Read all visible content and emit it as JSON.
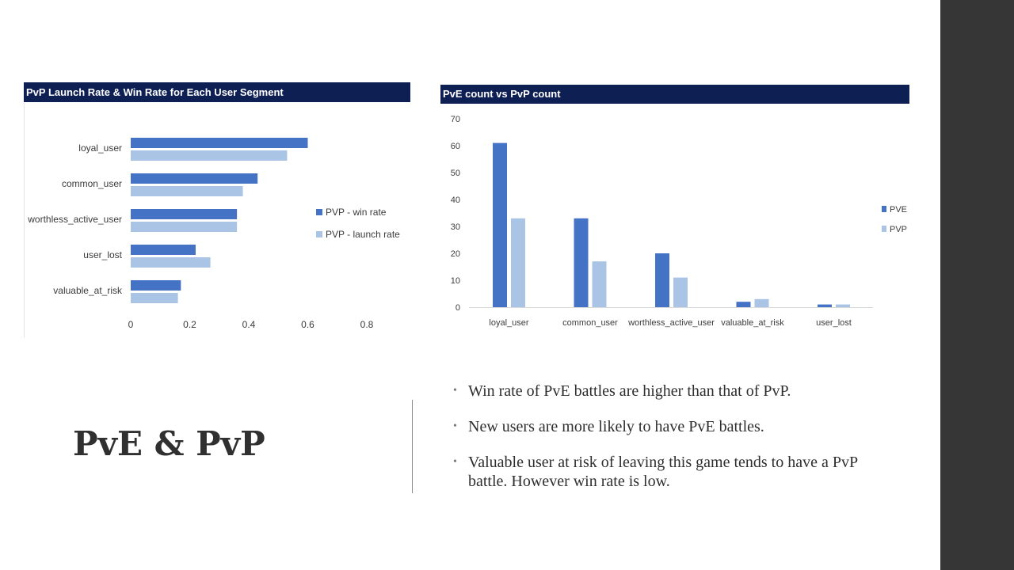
{
  "slide": {
    "title": "PvE & PvP",
    "bullets": [
      "Win rate of PvE battles are higher than that of PvP.",
      "New users are more likely to have PvE battles.",
      "Valuable user at risk of leaving this game tends to have a PvP battle. However win rate is low."
    ],
    "bullet_symbol": "•"
  },
  "chart_data": [
    {
      "type": "bar",
      "orientation": "horizontal",
      "title": "PvP Launch Rate & Win Rate for Each User Segment",
      "categories": [
        "loyal_user",
        "common_user",
        "worthless_active_user",
        "user_lost",
        "valuable_at_risk"
      ],
      "series": [
        {
          "name": "PVP - win rate",
          "values": [
            0.6,
            0.43,
            0.36,
            0.22,
            0.17
          ],
          "color": "#4472c4"
        },
        {
          "name": "PVP -  launch rate",
          "values": [
            0.53,
            0.38,
            0.36,
            0.27,
            0.16
          ],
          "color": "#a9c4e4"
        }
      ],
      "xlim": [
        0,
        0.8
      ],
      "xticks": [
        "0",
        "0.2",
        "0.4",
        "0.6",
        "0.8"
      ],
      "xtick_values": [
        0,
        0.2,
        0.4,
        0.6,
        0.8
      ],
      "grid": false,
      "legend_position": "right"
    },
    {
      "type": "bar",
      "orientation": "vertical",
      "title": "PvE count vs PvP count",
      "categories": [
        "loyal_user",
        "common_user",
        "worthless_active_user",
        "valuable_at_risk",
        "user_lost"
      ],
      "series": [
        {
          "name": "PVE",
          "values": [
            61,
            33,
            20,
            2,
            1
          ],
          "color": "#4472c4"
        },
        {
          "name": "PVP",
          "values": [
            33,
            17,
            11,
            3,
            1
          ],
          "color": "#a9c4e4"
        }
      ],
      "ylim": [
        0,
        70
      ],
      "yticks": [
        "0",
        "10",
        "20",
        "30",
        "40",
        "50",
        "60",
        "70"
      ],
      "ytick_values": [
        0,
        10,
        20,
        30,
        40,
        50,
        60,
        70
      ],
      "grid": false,
      "legend_position": "right"
    }
  ]
}
